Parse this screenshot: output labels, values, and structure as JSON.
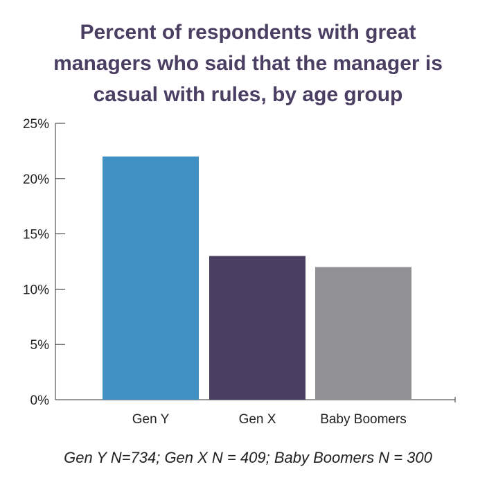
{
  "chart_data": {
    "type": "bar",
    "title_lines": [
      "Percent of respondents with great",
      "managers who said that the manager is",
      "casual with rules, by age group"
    ],
    "categories": [
      "Gen Y",
      "Gen X",
      "Baby Boomers"
    ],
    "values": [
      22,
      13,
      12
    ],
    "colors": [
      "#4190c4",
      "#4a3f63",
      "#929295"
    ],
    "ylim": [
      0,
      25
    ],
    "yticks": [
      0,
      5,
      10,
      15,
      20,
      25
    ],
    "ytick_labels": [
      "0%",
      "5%",
      "10%",
      "15%",
      "20%",
      "25%"
    ],
    "xlabel": "",
    "ylabel": "",
    "grid": false,
    "legend": "none"
  },
  "note": "Gen Y N=734; Gen X N = 409; Baby Boomers N = 300"
}
